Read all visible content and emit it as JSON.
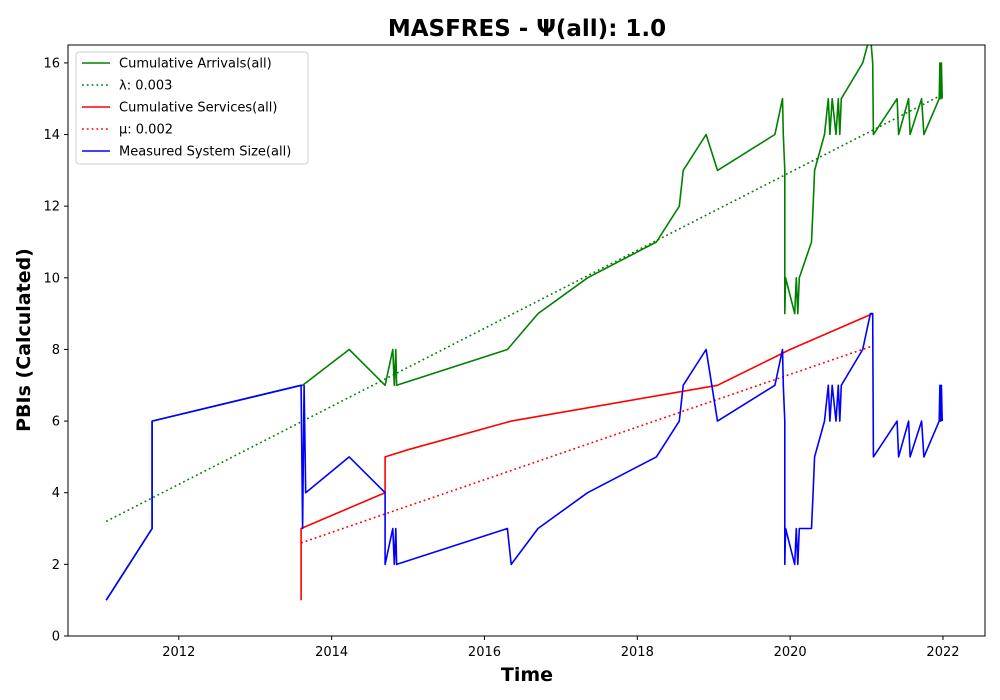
{
  "chart_data": {
    "type": "line",
    "title": "MASFRES -  Ψ(all): 1.0",
    "xlabel": "Time",
    "ylabel": "PBIs (Calculated)",
    "xlim": [
      2010.55,
      2022.55
    ],
    "ylim": [
      0,
      16.5
    ],
    "x_ticks": [
      2012,
      2014,
      2016,
      2018,
      2020,
      2022
    ],
    "x_tick_labels": [
      "2012",
      "2014",
      "2016",
      "2018",
      "2020",
      "2022"
    ],
    "y_ticks": [
      0,
      2,
      4,
      6,
      8,
      10,
      12,
      14,
      16
    ],
    "y_tick_labels": [
      "0",
      "2",
      "4",
      "6",
      "8",
      "10",
      "12",
      "14",
      "16"
    ],
    "legend_position": "top-left",
    "series": [
      {
        "name": "Cumulative Arrivals(all)",
        "color": "#008000",
        "style": "solid",
        "points": [
          [
            2011.05,
            1
          ],
          [
            2011.65,
            3
          ],
          [
            2011.65,
            6
          ],
          [
            2013.6,
            7
          ],
          [
            2013.62,
            7
          ],
          [
            2014.23,
            8
          ],
          [
            2014.7,
            7
          ],
          [
            2014.8,
            8
          ],
          [
            2014.82,
            7
          ],
          [
            2014.84,
            8
          ],
          [
            2014.85,
            7
          ],
          [
            2016.3,
            8
          ],
          [
            2016.7,
            9
          ],
          [
            2017.35,
            10
          ],
          [
            2018.25,
            11
          ],
          [
            2018.55,
            12
          ],
          [
            2018.6,
            13
          ],
          [
            2018.9,
            14
          ],
          [
            2019.05,
            13
          ],
          [
            2019.8,
            14
          ],
          [
            2019.9,
            15
          ],
          [
            2019.91,
            14
          ],
          [
            2019.93,
            13
          ],
          [
            2019.93,
            9
          ],
          [
            2019.94,
            10
          ],
          [
            2020.06,
            9
          ],
          [
            2020.08,
            10
          ],
          [
            2020.1,
            9
          ],
          [
            2020.12,
            10
          ],
          [
            2020.28,
            11
          ],
          [
            2020.3,
            12
          ],
          [
            2020.32,
            13
          ],
          [
            2020.45,
            14
          ],
          [
            2020.5,
            15
          ],
          [
            2020.52,
            14
          ],
          [
            2020.55,
            15
          ],
          [
            2020.6,
            14
          ],
          [
            2020.63,
            15
          ],
          [
            2020.65,
            14
          ],
          [
            2020.67,
            15
          ],
          [
            2020.95,
            16
          ],
          [
            2021.05,
            16.8
          ],
          [
            2021.08,
            16
          ],
          [
            2021.09,
            14
          ],
          [
            2021.4,
            15
          ],
          [
            2021.42,
            14
          ],
          [
            2021.55,
            15
          ],
          [
            2021.57,
            14
          ],
          [
            2021.72,
            15
          ],
          [
            2021.75,
            14
          ],
          [
            2021.95,
            15
          ],
          [
            2021.96,
            16
          ],
          [
            2021.97,
            15
          ],
          [
            2021.98,
            16
          ],
          [
            2021.99,
            15
          ]
        ]
      },
      {
        "name": "λ: 0.003",
        "color": "#008000",
        "style": "dotted",
        "points": [
          [
            2011.05,
            3.2
          ],
          [
            2021.98,
            15.1
          ]
        ]
      },
      {
        "name": "Cumulative Services(all)",
        "color": "#ff0000",
        "style": "solid",
        "points": [
          [
            2013.6,
            1
          ],
          [
            2013.6,
            3
          ],
          [
            2014.7,
            4
          ],
          [
            2014.7,
            5
          ],
          [
            2015.0,
            5.2
          ],
          [
            2016.35,
            6
          ],
          [
            2019.05,
            7
          ],
          [
            2020.0,
            8
          ],
          [
            2021.08,
            9
          ]
        ]
      },
      {
        "name": "μ: 0.002",
        "color": "#ff0000",
        "style": "dotted",
        "points": [
          [
            2013.6,
            2.6
          ],
          [
            2021.08,
            8.1
          ]
        ]
      },
      {
        "name": "Measured System Size(all)",
        "color": "#0000ff",
        "style": "solid",
        "points": [
          [
            2011.05,
            1
          ],
          [
            2011.65,
            3
          ],
          [
            2011.65,
            6
          ],
          [
            2013.6,
            7
          ],
          [
            2013.62,
            3
          ],
          [
            2013.64,
            7
          ],
          [
            2013.66,
            4
          ],
          [
            2014.23,
            5
          ],
          [
            2014.7,
            4
          ],
          [
            2014.7,
            2
          ],
          [
            2014.8,
            3
          ],
          [
            2014.82,
            2
          ],
          [
            2014.84,
            3
          ],
          [
            2014.85,
            2
          ],
          [
            2016.3,
            3
          ],
          [
            2016.35,
            2
          ],
          [
            2016.7,
            3
          ],
          [
            2017.35,
            4
          ],
          [
            2018.25,
            5
          ],
          [
            2018.55,
            6
          ],
          [
            2018.6,
            7
          ],
          [
            2018.9,
            8
          ],
          [
            2019.05,
            6
          ],
          [
            2019.8,
            7
          ],
          [
            2019.9,
            8
          ],
          [
            2019.91,
            7
          ],
          [
            2019.93,
            6
          ],
          [
            2019.93,
            2
          ],
          [
            2019.94,
            3
          ],
          [
            2020.06,
            2
          ],
          [
            2020.08,
            3
          ],
          [
            2020.1,
            2
          ],
          [
            2020.12,
            3
          ],
          [
            2020.28,
            3
          ],
          [
            2020.3,
            4
          ],
          [
            2020.32,
            5
          ],
          [
            2020.45,
            6
          ],
          [
            2020.5,
            7
          ],
          [
            2020.52,
            6
          ],
          [
            2020.55,
            7
          ],
          [
            2020.6,
            6
          ],
          [
            2020.63,
            7
          ],
          [
            2020.65,
            6
          ],
          [
            2020.67,
            7
          ],
          [
            2020.95,
            8
          ],
          [
            2021.05,
            9
          ],
          [
            2021.08,
            9
          ],
          [
            2021.09,
            5
          ],
          [
            2021.4,
            6
          ],
          [
            2021.42,
            5
          ],
          [
            2021.55,
            6
          ],
          [
            2021.57,
            5
          ],
          [
            2021.72,
            6
          ],
          [
            2021.75,
            5
          ],
          [
            2021.95,
            6
          ],
          [
            2021.96,
            7
          ],
          [
            2021.97,
            6
          ],
          [
            2021.98,
            7
          ],
          [
            2021.99,
            6
          ]
        ]
      }
    ]
  }
}
